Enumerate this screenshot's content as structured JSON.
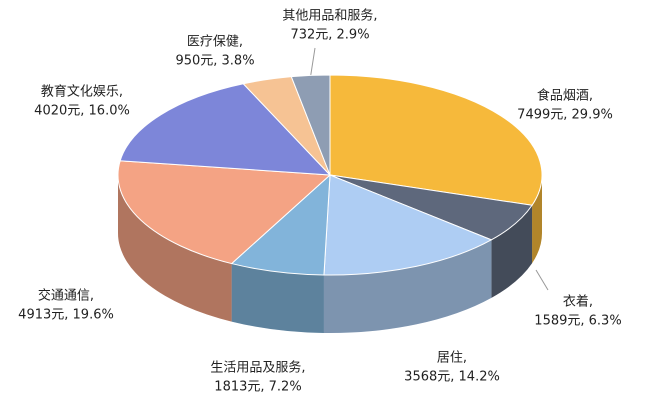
{
  "chart_data": {
    "type": "pie3d",
    "categories": [
      "食品烟酒,",
      "衣着,",
      "居住,",
      "生活用品及服务,",
      "交通通信,",
      "教育文化娱乐,",
      "医疗保健,",
      "其他用品和服务,"
    ],
    "values": [
      7499,
      1589,
      3568,
      1813,
      4913,
      4020,
      950,
      732
    ],
    "value_labels": [
      "7499元, 29.9%",
      "1589元, 6.3%",
      "3568元, 14.2%",
      "1813元, 7.2%",
      "4913元, 19.6%",
      "4020元, 16.0%",
      "950元, 3.8%",
      "732元, 2.9%"
    ],
    "colors": [
      "#f6b93b",
      "#5e687c",
      "#aecdf3",
      "#82b4da",
      "#f4a384",
      "#7d86d9",
      "#f6c394",
      "#8e9db3"
    ]
  }
}
